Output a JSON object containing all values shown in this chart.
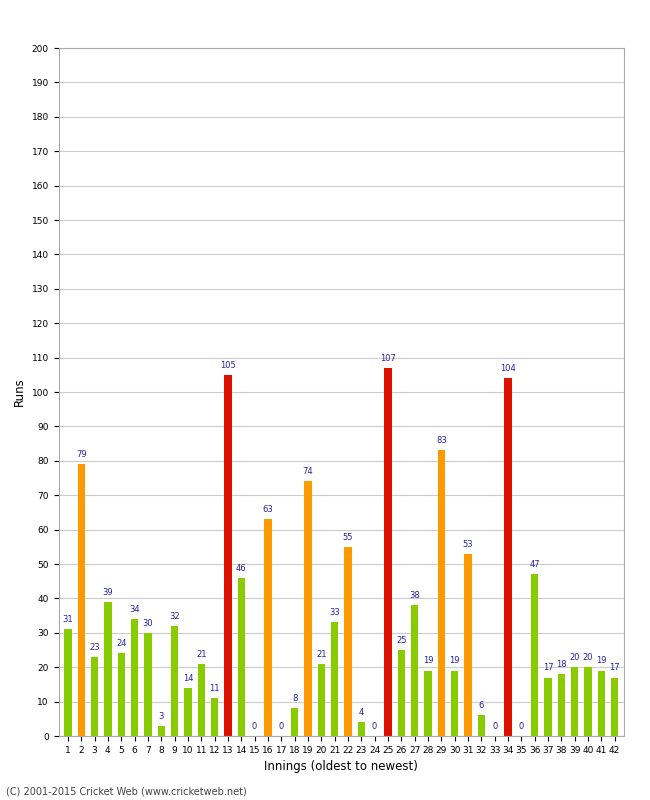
{
  "innings": [
    1,
    2,
    3,
    4,
    5,
    6,
    7,
    8,
    9,
    10,
    11,
    12,
    13,
    14,
    15,
    16,
    17,
    18,
    19,
    20,
    21,
    22,
    23,
    24,
    25,
    26,
    27,
    28,
    29,
    30,
    31,
    32,
    33,
    34,
    35,
    36,
    37,
    38,
    39,
    40,
    41,
    42
  ],
  "values": [
    31,
    79,
    23,
    39,
    24,
    34,
    30,
    3,
    32,
    14,
    21,
    11,
    105,
    46,
    0,
    63,
    0,
    8,
    74,
    21,
    33,
    55,
    4,
    0,
    107,
    25,
    38,
    19,
    83,
    19,
    53,
    6,
    0,
    104,
    0,
    47,
    17,
    18,
    20,
    20,
    19,
    17
  ],
  "ylabel": "Runs",
  "xlabel": "Innings (oldest to newest)",
  "copyright": "(C) 2001-2015 Cricket Web (www.cricketweb.net)",
  "ylim": [
    0,
    200
  ],
  "yticks": [
    0,
    10,
    20,
    30,
    40,
    50,
    60,
    70,
    80,
    90,
    100,
    110,
    120,
    130,
    140,
    150,
    160,
    170,
    180,
    190,
    200
  ],
  "color_century": "#dd1100",
  "color_fifty": "#ff9900",
  "color_other": "#88cc00",
  "background_color": "#ffffff",
  "grid_color": "#cccccc",
  "bar_width": 0.55,
  "label_fontsize": 6.0,
  "tick_fontsize": 6.5,
  "axis_label_fontsize": 8.5
}
